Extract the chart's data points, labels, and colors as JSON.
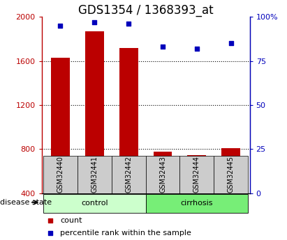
{
  "title": "GDS1354 / 1368393_at",
  "samples": [
    "GSM32440",
    "GSM32441",
    "GSM32442",
    "GSM32443",
    "GSM32444",
    "GSM32445"
  ],
  "counts": [
    1630,
    1870,
    1720,
    775,
    745,
    810
  ],
  "percentiles": [
    95,
    97,
    96,
    83,
    82,
    85
  ],
  "bar_color": "#bb0000",
  "dot_color": "#0000bb",
  "ylim_left": [
    400,
    2000
  ],
  "ylim_right": [
    0,
    100
  ],
  "yticks_left": [
    400,
    800,
    1200,
    1600,
    2000
  ],
  "yticks_right": [
    0,
    25,
    50,
    75,
    100
  ],
  "yticklabels_right": [
    "0",
    "25",
    "50",
    "75",
    "100%"
  ],
  "grid_ticks": [
    800,
    1200,
    1600
  ],
  "control_color": "#ccffcc",
  "cirrhosis_color": "#77ee77",
  "sample_box_color": "#cccccc",
  "background_color": "#ffffff",
  "title_fontsize": 12,
  "tick_fontsize": 8,
  "label_fontsize": 8,
  "sample_fontsize": 7
}
